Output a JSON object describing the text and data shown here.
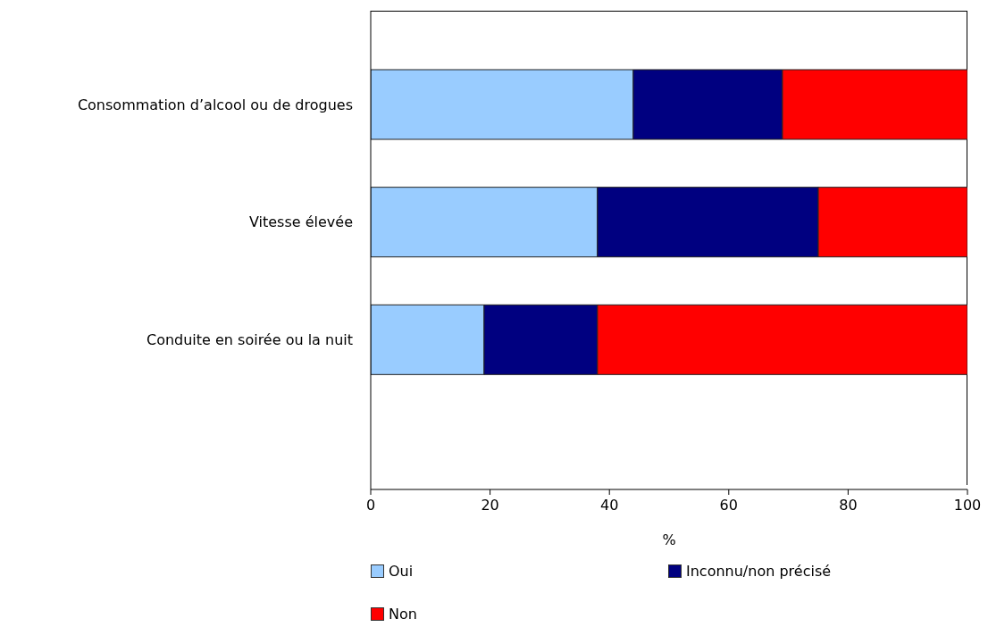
{
  "chart_data": {
    "type": "bar",
    "orientation": "horizontal",
    "stacked": true,
    "xlabel": "%",
    "categories": [
      "Consommation d’alcool ou de drogues",
      "Vitesse élevée",
      "Conduite en soirée ou la nuit"
    ],
    "series": [
      {
        "name": "Oui",
        "color": "#99ccff",
        "values": [
          44,
          38,
          19
        ]
      },
      {
        "name": "Inconnu/non précisé",
        "color": "#000080",
        "values": [
          25,
          37,
          19
        ]
      },
      {
        "name": "Non",
        "color": "#ff0000",
        "values": [
          31,
          25,
          62
        ]
      }
    ],
    "xlim": [
      0,
      100
    ],
    "xticks": [
      0,
      20,
      40,
      60,
      80,
      100
    ],
    "legend": "bottom"
  }
}
